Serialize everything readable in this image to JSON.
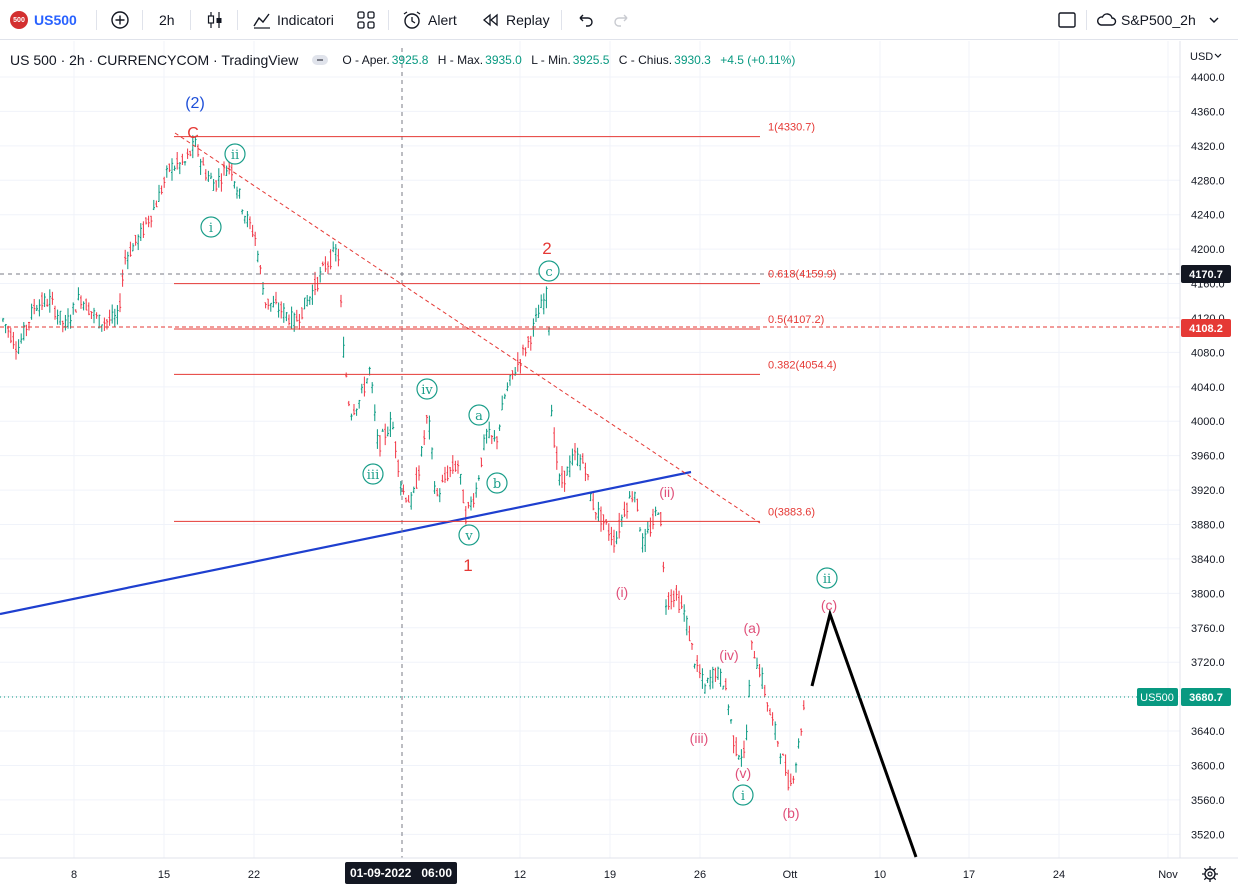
{
  "toolbar": {
    "symbol_badge": "500",
    "symbol": "US500",
    "interval": "2h",
    "indicators_label": "Indicatori",
    "alert_label": "Alert",
    "replay_label": "Replay",
    "layout_name": "S&P500_2h"
  },
  "header": {
    "title": "US 500 · 2h · CURRENCYCOM · TradingView",
    "open_label": "O - Aper.",
    "open": "3925.8",
    "high_label": "H - Max.",
    "high": "3935.0",
    "low_label": "L - Min.",
    "low": "3925.5",
    "close_label": "C - Chius.",
    "close": "3930.3",
    "change": "+4.5 (+0.11%)"
  },
  "price_axis": {
    "currency": "USD",
    "ticks": [
      "4400.0",
      "4360.0",
      "4320.0",
      "4280.0",
      "4240.0",
      "4200.0",
      "4160.0",
      "4120.0",
      "4080.0",
      "4040.0",
      "4000.0",
      "3960.0",
      "3920.0",
      "3880.0",
      "3840.0",
      "3800.0",
      "3760.0",
      "3720.0",
      "3680.0",
      "3640.0",
      "3600.0",
      "3560.0",
      "3520.0"
    ],
    "label_4170": "4170.7",
    "label_4108": "4108.2",
    "label_last_name": "US500",
    "label_last": "3680.7"
  },
  "time_axis": {
    "ticks": [
      "8",
      "15",
      "22",
      "12",
      "19",
      "26",
      "Ott",
      "10",
      "17",
      "24",
      "Nov"
    ],
    "crosshair_label": "01-09-2022   06:00"
  },
  "fib_levels": [
    {
      "label": "1(4330.7)",
      "price": 4330.7
    },
    {
      "label": "0.618(4159.9)",
      "price": 4159.9
    },
    {
      "label": "0.5(4107.2)",
      "price": 4107.2
    },
    {
      "label": "0.382(4054.4)",
      "price": 4054.4
    },
    {
      "label": "0(3883.6)",
      "price": 3883.6
    }
  ],
  "wave_labels": {
    "w2_big": "(2)",
    "wC": "C",
    "w_i_circ": "i",
    "w_ii_circ": "ii",
    "w_iii_circ": "iii",
    "w_iv_circ": "iv",
    "w_v_circ": "v",
    "w_1": "1",
    "w_a_circ": "a",
    "w_b_circ": "b",
    "w_c_circ": "c",
    "w_2": "2",
    "w_i_par": "(i)",
    "w_ii_par": "(ii)",
    "w_iii_par": "(iii)",
    "w_iv_par": "(iv)",
    "w_v_par": "(v)",
    "w_i_circ2": "i",
    "w_a_par": "(a)",
    "w_b_par": "(b)",
    "w_c_par": "(c)",
    "w_ii_circ2": "ii"
  },
  "colors": {
    "up": "#089981",
    "down": "#f23645",
    "fib": "#e53935",
    "trend": "#1e3fcf",
    "wave_green": "#1b9e8a",
    "wave_pink": "#e0507a",
    "wave_red": "#e53935",
    "wave_blue": "#1e4fd8"
  }
}
